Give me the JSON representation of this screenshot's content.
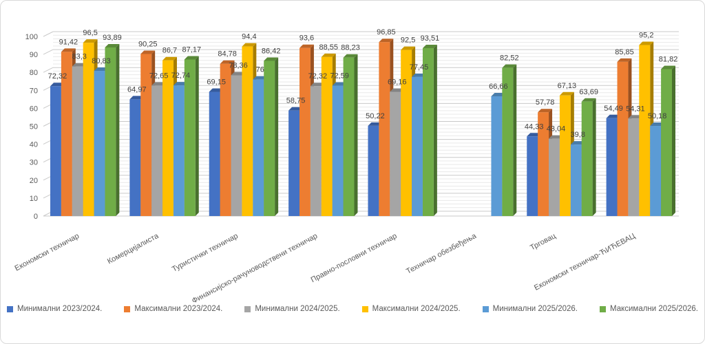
{
  "window": {
    "background_color": "#FFFFFF",
    "frame_border_color": "#D9D9D9"
  },
  "chart_data": {
    "type": "bar",
    "style": "3d-clustered-column",
    "title": "",
    "xlabel": "",
    "ylabel": "",
    "ylim": [
      0,
      100
    ],
    "y_major_unit": 10,
    "y_minor_unit": 2,
    "grid": true,
    "legend_position": "bottom",
    "axis_text_color": "#595959",
    "value_label_color": "#404040",
    "gridline_major_color": "#C9C9C9",
    "gridline_minor_color": "#E9E9E9",
    "categories": [
      "Економски техничар",
      "Комерцијалиста",
      "Туристички техничар",
      "Финансијско-рачуноводствени техничар",
      "Правно-пословни техничар",
      "Техничар обезбеђења",
      "Трговац",
      "Економски техничар-ЋИЋЕВАЦ"
    ],
    "series": [
      {
        "name": "Минимални 2023/2024.",
        "color": "#4472C4",
        "values": [
          72.32,
          64.97,
          69.15,
          58.75,
          50.22,
          null,
          44.33,
          54.49
        ],
        "labels": [
          "72,32",
          "64,97",
          "69,15",
          "58,75",
          "50,22",
          "",
          "44,33",
          "54,49"
        ]
      },
      {
        "name": "Максимални 2023/2024.",
        "color": "#ED7D31",
        "values": [
          91.42,
          90.25,
          84.78,
          93.6,
          96.85,
          null,
          57.78,
          85.85
        ],
        "labels": [
          "91,42",
          "90,25",
          "84,78",
          "93,6",
          "96,85",
          "",
          "57,78",
          "85,85"
        ]
      },
      {
        "name": "Минимални 2024/2025.",
        "color": "#A5A5A5",
        "values": [
          83.3,
          72.65,
          78.36,
          72.32,
          69.16,
          null,
          43.04,
          54.31
        ],
        "labels": [
          "83,3",
          "72,65",
          "78,36",
          "72,32",
          "69,16",
          "",
          "43,04",
          "54,31"
        ]
      },
      {
        "name": "Максимални 2024/2025.",
        "color": "#FFC000",
        "values": [
          96.5,
          86.7,
          94.4,
          88.55,
          92.5,
          null,
          67.13,
          95.2
        ],
        "labels": [
          "96,5",
          "86,7",
          "94,4",
          "88,55",
          "92,5",
          "",
          "67,13",
          "95,2"
        ]
      },
      {
        "name": "Минимални 2025/2026.",
        "color": "#5B9BD5",
        "values": [
          80.83,
          72.74,
          76,
          72.59,
          77.45,
          66.66,
          39.8,
          50.18
        ],
        "labels": [
          "80,83",
          "72,74",
          "76",
          "72,59",
          "77,45",
          "66,66",
          "39,8",
          "50,18"
        ]
      },
      {
        "name": "Максимални 2025/2026.",
        "color": "#70AD47",
        "values": [
          93.89,
          87.17,
          86.42,
          88.23,
          93.51,
          82.52,
          63.69,
          81.82
        ],
        "labels": [
          "93,89",
          "87,17",
          "86,42",
          "88,23",
          "93,51",
          "82,52",
          "63,69",
          "81,82"
        ]
      }
    ]
  }
}
